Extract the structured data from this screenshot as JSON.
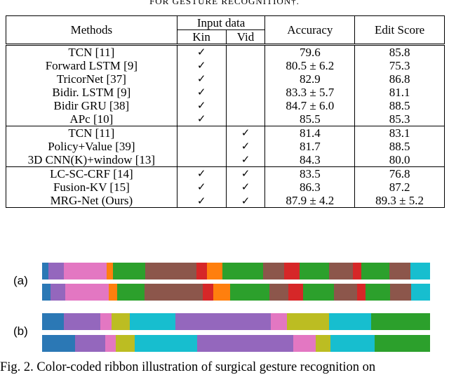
{
  "table": {
    "caption_fragment": "FOR GESTURE RECOGNITION†.",
    "headers": {
      "methods": "Methods",
      "input_data": "Input data",
      "kin": "Kin",
      "vid": "Vid",
      "accuracy": "Accuracy",
      "edit_score": "Edit Score"
    },
    "groups": [
      [
        {
          "method": "TCN [11]",
          "kin": "✓",
          "vid": "",
          "acc": "79.6",
          "edit": "85.8",
          "bold": false
        },
        {
          "method": "Forward LSTM [9]",
          "kin": "✓",
          "vid": "",
          "acc": "80.5 ± 6.2",
          "edit": "75.3",
          "bold": false
        },
        {
          "method": "TricorNet [37]",
          "kin": "✓",
          "vid": "",
          "acc": "82.9",
          "edit": "86.8",
          "bold": false
        },
        {
          "method": "Bidir. LSTM [9]",
          "kin": "✓",
          "vid": "",
          "acc": "83.3 ± 5.7",
          "edit": "81.1",
          "bold": false
        },
        {
          "method": "Bidir GRU [38]",
          "kin": "✓",
          "vid": "",
          "acc": "84.7 ± 6.0",
          "edit": "88.5",
          "bold": false
        },
        {
          "method": "APc [10]",
          "kin": "✓",
          "vid": "",
          "acc": "85.5",
          "edit": "85.3",
          "bold": false
        }
      ],
      [
        {
          "method": "TCN [11]",
          "kin": "",
          "vid": "✓",
          "acc": "81.4",
          "edit": "83.1",
          "bold": false
        },
        {
          "method": "Policy+Value [39]",
          "kin": "",
          "vid": "✓",
          "acc": "81.7",
          "edit": "88.5",
          "bold": false
        },
        {
          "method": "3D CNN(K)+window [13]",
          "kin": "",
          "vid": "✓",
          "acc": "84.3",
          "edit": "80.0",
          "bold": false
        }
      ],
      [
        {
          "method": "LC-SC-CRF [14]",
          "kin": "✓",
          "vid": "✓",
          "acc": "83.5",
          "edit": "76.8",
          "bold": false
        },
        {
          "method": "Fusion-KV [15]",
          "kin": "✓",
          "vid": "✓",
          "acc": "86.3",
          "edit": "87.2",
          "bold": false
        },
        {
          "method": "MRG-Net (Ours)",
          "kin": "✓",
          "vid": "✓",
          "acc": "87.9 ± 4.2",
          "edit": "89.3 ± 5.2",
          "bold": true
        }
      ]
    ]
  },
  "ribbons": {
    "labels": {
      "a": "(a)",
      "b": "(b)"
    },
    "colors": {
      "blue": "#2b78b5",
      "violet": "#9467bd",
      "pink": "#e377c2",
      "orange": "#ff7f0e",
      "green": "#2ca02c",
      "brown": "#8c564b",
      "red": "#d62728",
      "olive": "#bcbd22",
      "cyan": "#17becf"
    },
    "rows": [
      [
        [
          "blue",
          1.5
        ],
        [
          "violet",
          3.5
        ],
        [
          "pink",
          10
        ],
        [
          "orange",
          1.5
        ],
        [
          "green",
          7.5
        ],
        [
          "brown",
          12
        ],
        [
          "red",
          2.5
        ],
        [
          "orange",
          3.5
        ],
        [
          "green",
          9.5
        ],
        [
          "brown",
          5
        ],
        [
          "red",
          3.5
        ],
        [
          "green",
          7
        ],
        [
          "brown",
          5.5
        ],
        [
          "red",
          2
        ],
        [
          "green",
          6.5
        ],
        [
          "brown",
          5
        ],
        [
          "cyan",
          4.5
        ]
      ],
      [
        [
          "blue",
          2
        ],
        [
          "violet",
          3.5
        ],
        [
          "pink",
          10.5
        ],
        [
          "orange",
          2
        ],
        [
          "green",
          6.5
        ],
        [
          "brown",
          14
        ],
        [
          "red",
          2.5
        ],
        [
          "orange",
          4
        ],
        [
          "green",
          9.5
        ],
        [
          "brown",
          4.5
        ],
        [
          "red",
          3.5
        ],
        [
          "green",
          7.5
        ],
        [
          "brown",
          5.5
        ],
        [
          "red",
          2
        ],
        [
          "green",
          6
        ],
        [
          "brown",
          5
        ],
        [
          "cyan",
          4.5
        ]
      ],
      [
        [
          "blue",
          6
        ],
        [
          "violet",
          10
        ],
        [
          "pink",
          3
        ],
        [
          "olive",
          5
        ],
        [
          "cyan",
          12.5
        ],
        [
          "violet",
          26
        ],
        [
          "pink",
          4.5
        ],
        [
          "olive",
          11.5
        ],
        [
          "cyan",
          11.5
        ],
        [
          "green",
          16
        ]
      ],
      [
        [
          "blue",
          9
        ],
        [
          "violet",
          8
        ],
        [
          "pink",
          3
        ],
        [
          "olive",
          5
        ],
        [
          "cyan",
          17
        ],
        [
          "violet",
          26
        ],
        [
          "pink",
          6
        ],
        [
          "olive",
          4
        ],
        [
          "cyan",
          12
        ],
        [
          "green",
          15
        ]
      ]
    ]
  },
  "figure_caption": "Fig. 2.   Color-coded ribbon illustration of surgical gesture recognition on"
}
